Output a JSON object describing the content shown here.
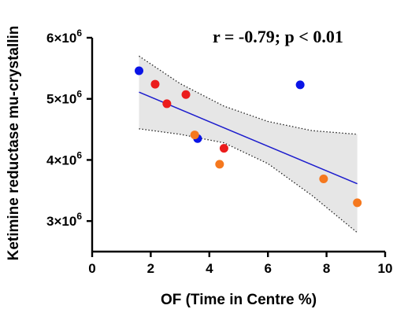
{
  "chart_data": {
    "type": "scatter",
    "title": "",
    "xlabel": "OF (Time in Centre %)",
    "ylabel": "Ketimine reductase mu-crystallin",
    "annotation": "r = -0.79; p < 0.01",
    "xlim": [
      0,
      10
    ],
    "ylim": [
      2500000,
      6000000
    ],
    "x_ticks": [
      0,
      2,
      4,
      6,
      8,
      10
    ],
    "y_ticks": [
      3000000,
      4000000,
      5000000,
      6000000
    ],
    "x_tick_labels": [
      "0",
      "2",
      "4",
      "6",
      "8",
      "10"
    ],
    "y_tick_labels": [
      "3×10",
      "4×10",
      "5×10",
      "6×10"
    ],
    "y_tick_exponent": "6",
    "grid": false,
    "colors": {
      "blue": "#0a14e6",
      "red": "#eb1c1c",
      "orange": "#f5781e",
      "regression": "#1c1ccd",
      "band": "#e6e6e6"
    },
    "series": [
      {
        "color": "blue",
        "points": [
          [
            1.6,
            5460000
          ],
          [
            3.6,
            4350000
          ],
          [
            7.1,
            5230000
          ]
        ]
      },
      {
        "color": "red",
        "points": [
          [
            2.15,
            5240000
          ],
          [
            2.55,
            4920000
          ],
          [
            3.2,
            5070000
          ],
          [
            4.5,
            4190000
          ]
        ]
      },
      {
        "color": "orange",
        "points": [
          [
            3.5,
            4410000
          ],
          [
            4.35,
            3930000
          ],
          [
            7.9,
            3690000
          ],
          [
            9.05,
            3300000
          ]
        ]
      }
    ],
    "regression": {
      "x": [
        1.6,
        9.05
      ],
      "y": [
        5110000,
        3610000
      ]
    },
    "confidence_band": {
      "x": [
        1.6,
        3,
        4.5,
        6,
        7.5,
        9.05
      ],
      "upper": [
        5700000,
        5250000,
        4880000,
        4630000,
        4480000,
        4420000
      ],
      "lower": [
        4510000,
        4420000,
        4280000,
        3940000,
        3420000,
        2810000
      ]
    }
  }
}
